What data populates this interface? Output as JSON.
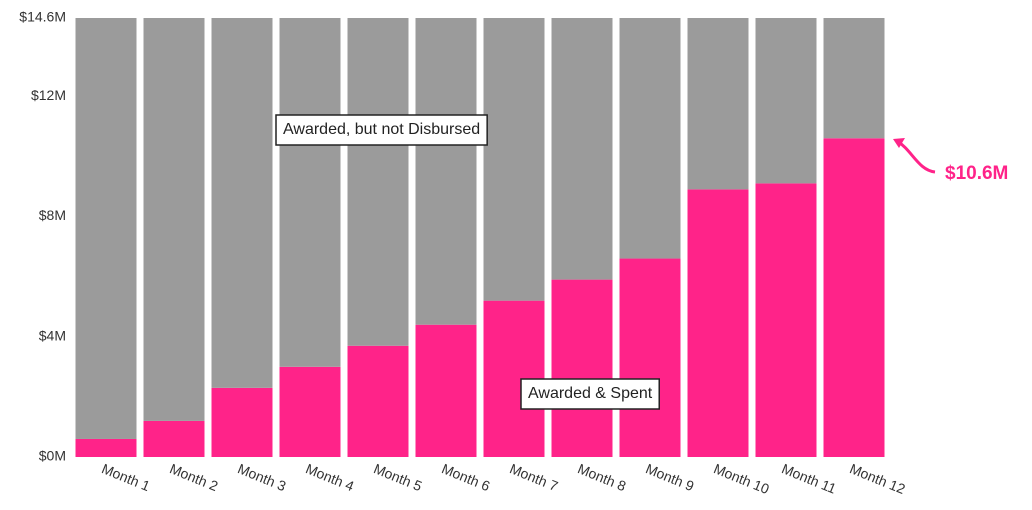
{
  "chart_data": {
    "type": "stacked_bar",
    "categories": [
      "Month 1",
      "Month 2",
      "Month 3",
      "Month 4",
      "Month 5",
      "Month 6",
      "Month 7",
      "Month 8",
      "Month 9",
      "Month 10",
      "Month 11",
      "Month 12"
    ],
    "series": [
      {
        "name": "Awarded & Spent",
        "color": "#ff2389",
        "values": [
          0.6,
          1.2,
          2.3,
          3.0,
          3.7,
          4.4,
          5.2,
          5.9,
          6.6,
          8.9,
          9.1,
          10.6
        ]
      },
      {
        "name": "Awarded, but not Disbursed",
        "color": "#9b9b9b",
        "values": [
          14.0,
          13.4,
          12.3,
          11.6,
          10.9,
          10.2,
          9.4,
          8.7,
          8.0,
          5.7,
          5.5,
          4.0
        ]
      }
    ],
    "ylim": [
      0,
      14.6
    ],
    "yticks": [
      {
        "value": 0,
        "label": "$0M"
      },
      {
        "value": 4,
        "label": "$4M"
      },
      {
        "value": 8,
        "label": "$8M"
      },
      {
        "value": 12,
        "label": "$12M"
      },
      {
        "value": 14.6,
        "label": "$14.6M"
      }
    ],
    "callout": "$10.6M"
  }
}
